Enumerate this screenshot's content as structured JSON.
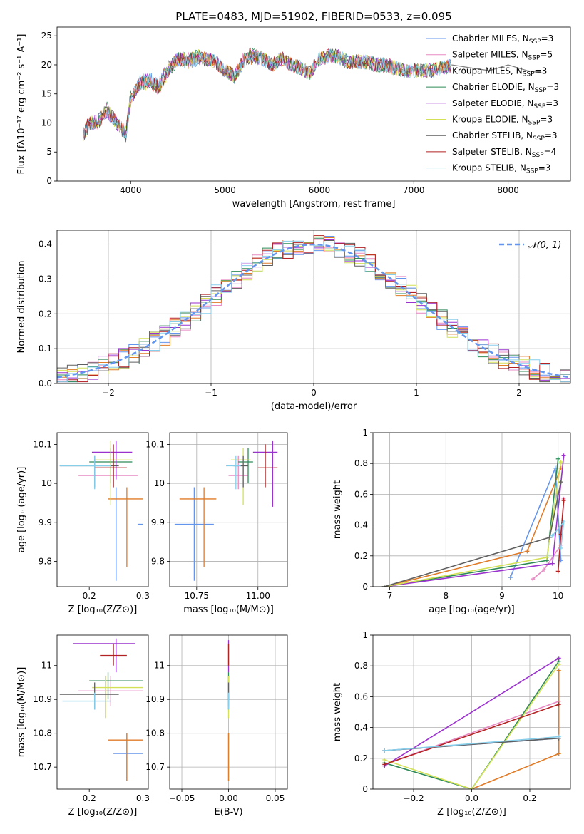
{
  "figure": {
    "title": "PLATE=0483, MJD=51902, FIBERID=0533, z=0.095"
  },
  "colors": [
    "#6495ed",
    "#e78ac3",
    "#e07b28",
    "#2e8b57",
    "#9a32cd",
    "#d4e157",
    "#5f5f5f",
    "#b22222",
    "#87ceeb"
  ],
  "legend": [
    {
      "label": "Chabrier MILES, N",
      "sub": "SSP",
      "tail": "=3",
      "color": "#6495ed"
    },
    {
      "label": "Salpeter MILES, N",
      "sub": "SSP",
      "tail": "=5",
      "color": "#e78ac3"
    },
    {
      "label": "Kroupa MILES, N",
      "sub": "SSP",
      "tail": "=3",
      "color": "#e07b28"
    },
    {
      "label": "Chabrier ELODIE, N",
      "sub": "SSP",
      "tail": "=3",
      "color": "#2e8b57"
    },
    {
      "label": "Salpeter ELODIE, N",
      "sub": "SSP",
      "tail": "=3",
      "color": "#9a32cd"
    },
    {
      "label": "Kroupa ELODIE, N",
      "sub": "SSP",
      "tail": "=3",
      "color": "#d4e157"
    },
    {
      "label": "Chabrier STELIB, N",
      "sub": "SSP",
      "tail": "=3",
      "color": "#5f5f5f"
    },
    {
      "label": "Salpeter STELIB, N",
      "sub": "SSP",
      "tail": "=4",
      "color": "#b22222"
    },
    {
      "label": "Kroupa STELIB, N",
      "sub": "SSP",
      "tail": "=3",
      "color": "#87ceeb"
    }
  ],
  "chart_data": [
    {
      "id": "spectrum",
      "type": "line",
      "xlabel": "wavelength [Angstrom, rest frame]",
      "ylabel": "Flux [fλ10⁻¹⁷ erg cm⁻² s⁻¹ A⁻¹]",
      "xlim": [
        3220,
        8660
      ],
      "ylim": [
        0,
        26.5
      ],
      "xticks": [
        4000,
        5000,
        6000,
        7000,
        8000
      ],
      "yticks": [
        0,
        5,
        10,
        15,
        20,
        25
      ],
      "x": [
        3500,
        3550,
        3650,
        3750,
        3850,
        3950,
        4000,
        4100,
        4200,
        4300,
        4400,
        4500,
        4600,
        4700,
        4800,
        4900,
        5000,
        5100,
        5200,
        5300,
        5400,
        5500,
        5600,
        5700,
        5800,
        5900,
        6000,
        6100,
        6200,
        6300,
        6400,
        6500,
        6600,
        6700,
        6800,
        6900,
        7000,
        7100,
        7200,
        7300,
        7400
      ],
      "series": [
        {
          "name": "Chabrier MILES",
          "values": [
            8,
            9.5,
            10.5,
            12,
            10,
            8,
            14,
            17,
            17.5,
            16.5,
            19.5,
            21,
            20.5,
            21,
            21,
            20.5,
            19,
            18,
            20.5,
            21.5,
            21,
            20,
            21,
            20,
            19.5,
            18.5,
            21,
            21.5,
            21.5,
            20.5,
            20.5,
            20.5,
            20,
            20,
            19.5,
            19,
            19,
            19,
            19,
            19.5,
            20
          ]
        },
        {
          "name": "Chabrier STELIB",
          "values": [
            8,
            10,
            10,
            12.5,
            10,
            8.5,
            14.5,
            17,
            17,
            16,
            19,
            21,
            21,
            21.5,
            21,
            20.5,
            19,
            18,
            21,
            22,
            21,
            20,
            21,
            20,
            19.5,
            18.5,
            21,
            21.5,
            21.5,
            20.5,
            20.5,
            20.5,
            20,
            20,
            19.5,
            19,
            19,
            19,
            19,
            19.5,
            20
          ]
        }
      ],
      "tail_x": [
        7400,
        7600,
        7800,
        8000,
        8200,
        8400
      ],
      "tail_y": [
        20,
        19.5,
        19,
        20,
        19,
        18.5
      ]
    },
    {
      "id": "residuals",
      "type": "histogram",
      "xlabel": "(data-model)/error",
      "ylabel": "Normed distribution",
      "xlim": [
        -2.5,
        2.5
      ],
      "ylim": [
        0,
        0.44
      ],
      "xticks": [
        -2,
        -1,
        0,
        1,
        2
      ],
      "xticklabels": [
        "−2",
        "−1",
        "0",
        "1",
        "2"
      ],
      "yticks": [
        0.0,
        0.1,
        0.2,
        0.3,
        0.4
      ],
      "yticklabels": [
        "0.0",
        "0.1",
        "0.2",
        "0.3",
        "0.4"
      ],
      "bin_width": 0.1,
      "legend_label": "𝒩(0, 1)"
    },
    {
      "id": "age_vs_z",
      "type": "errorbar",
      "xlabel": "Z [log₁₀(Z/Z⊙)]",
      "ylabel": "age  [log₁₀(age/yr)]",
      "xlim": [
        0.14,
        0.31
      ],
      "ylim": [
        9.735,
        10.13
      ],
      "xticks": [
        0.2,
        0.3
      ],
      "yticks": [
        9.8,
        9.9,
        10.0,
        10.1
      ],
      "points": [
        {
          "x": 0.25,
          "y": 9.895,
          "xerr": [
            0.29,
            0.3
          ],
          "yerr": [
            9.75,
            9.99
          ],
          "color": "#6495ed"
        },
        {
          "x": 0.245,
          "y": 10.02,
          "xerr": [
            0.18,
            0.29
          ],
          "yerr": [
            9.99,
            10.08
          ],
          "color": "#e78ac3"
        },
        {
          "x": 0.27,
          "y": 9.96,
          "xerr": [
            0.235,
            0.3
          ],
          "yerr": [
            9.785,
            9.99
          ],
          "color": "#e07b28"
        },
        {
          "x": 0.24,
          "y": 10.055,
          "xerr": [
            0.2,
            0.28
          ],
          "yerr": [
            10.0,
            10.09
          ],
          "color": "#2e8b57"
        },
        {
          "x": 0.25,
          "y": 10.08,
          "xerr": [
            0.205,
            0.28
          ],
          "yerr": [
            10.01,
            10.11
          ],
          "color": "#9a32cd"
        },
        {
          "x": 0.24,
          "y": 10.06,
          "xerr": [
            0.21,
            0.28
          ],
          "yerr": [
            9.945,
            10.11
          ],
          "color": "#d4e157"
        },
        {
          "x": 0.21,
          "y": 10.045,
          "xerr": [
            0.145,
            0.255
          ],
          "yerr": [
            9.99,
            10.07
          ],
          "color": "#5f5f5f"
        },
        {
          "x": 0.245,
          "y": 10.04,
          "xerr": [
            0.21,
            0.27
          ],
          "yerr": [
            9.99,
            10.1
          ],
          "color": "#b22222"
        },
        {
          "x": 0.21,
          "y": 10.045,
          "xerr": [
            0.145,
            0.24
          ],
          "yerr": [
            9.985,
            10.07
          ],
          "color": "#87ceeb"
        }
      ]
    },
    {
      "id": "age_vs_mass",
      "type": "errorbar",
      "xlabel": "mass [log₁₀(M/M⊙)]",
      "ylabel": "",
      "xlim": [
        10.64,
        11.12
      ],
      "ylim": [
        9.735,
        10.13
      ],
      "xticks": [
        10.75,
        11.0
      ],
      "xticklabels": [
        "10.75",
        "11.00"
      ],
      "yticks": [
        9.8,
        9.9,
        10.0,
        10.1
      ],
      "points": [
        {
          "x": 10.74,
          "y": 9.895,
          "xerr": [
            10.66,
            10.82
          ],
          "yerr": [
            9.75,
            9.99
          ],
          "color": "#6495ed"
        },
        {
          "x": 10.92,
          "y": 10.02,
          "xerr": [
            10.88,
            10.96
          ],
          "yerr": [
            9.985,
            10.07
          ],
          "color": "#e78ac3"
        },
        {
          "x": 10.78,
          "y": 9.96,
          "xerr": [
            10.68,
            10.83
          ],
          "yerr": [
            9.785,
            9.99
          ],
          "color": "#e07b28"
        },
        {
          "x": 10.96,
          "y": 10.055,
          "xerr": [
            10.92,
            10.98
          ],
          "yerr": [
            10.0,
            10.09
          ],
          "color": "#2e8b57"
        },
        {
          "x": 11.06,
          "y": 10.08,
          "xerr": [
            10.98,
            11.08
          ],
          "yerr": [
            9.94,
            10.11
          ],
          "color": "#9a32cd"
        },
        {
          "x": 10.94,
          "y": 10.06,
          "xerr": [
            10.89,
            10.97
          ],
          "yerr": [
            9.945,
            10.09
          ],
          "color": "#d4e157"
        },
        {
          "x": 10.94,
          "y": 10.045,
          "xerr": [
            10.9,
            10.96
          ],
          "yerr": [
            9.99,
            10.07
          ],
          "color": "#5f5f5f"
        },
        {
          "x": 11.03,
          "y": 10.04,
          "xerr": [
            11.0,
            11.08
          ],
          "yerr": [
            9.99,
            10.1
          ],
          "color": "#b22222"
        },
        {
          "x": 10.91,
          "y": 10.045,
          "xerr": [
            10.87,
            10.93
          ],
          "yerr": [
            9.985,
            10.07
          ],
          "color": "#87ceeb"
        }
      ]
    },
    {
      "id": "weight_vs_age",
      "type": "line",
      "xlabel": "age  [log₁₀(age/yr)]",
      "ylabel": "mass weight",
      "xlim": [
        6.7,
        10.22
      ],
      "ylim": [
        0,
        1.0
      ],
      "xticks": [
        7,
        8,
        9,
        10
      ],
      "yticks": [
        0.0,
        0.2,
        0.4,
        0.6,
        0.8,
        1.0
      ],
      "series": [
        {
          "name": "Chabrier MILES",
          "x": [
            9.15,
            9.95,
            10.05
          ],
          "y": [
            0.06,
            0.77,
            0.17
          ],
          "color": "#6495ed"
        },
        {
          "name": "Salpeter MILES",
          "x": [
            9.55,
            9.75,
            10.05,
            10.1
          ],
          "y": [
            0.05,
            0.11,
            0.27,
            0.57
          ],
          "color": "#e78ac3"
        },
        {
          "name": "Kroupa MILES",
          "x": [
            6.9,
            9.45,
            10.05
          ],
          "y": [
            0.0,
            0.23,
            0.77
          ],
          "color": "#e07b28"
        },
        {
          "name": "Chabrier ELODIE",
          "x": [
            6.9,
            9.8,
            10.0
          ],
          "y": [
            0.0,
            0.17,
            0.83
          ],
          "color": "#2e8b57"
        },
        {
          "name": "Salpeter ELODIE",
          "x": [
            6.9,
            9.9,
            10.1
          ],
          "y": [
            0.0,
            0.15,
            0.85
          ],
          "color": "#9a32cd"
        },
        {
          "name": "Kroupa ELODIE",
          "x": [
            6.9,
            9.8,
            10.05
          ],
          "y": [
            0.0,
            0.19,
            0.81
          ],
          "color": "#d4e157"
        },
        {
          "name": "Chabrier STELIB",
          "x": [
            6.9,
            9.85,
            10.05
          ],
          "y": [
            0.0,
            0.32,
            0.68
          ],
          "color": "#5f5f5f"
        },
        {
          "name": "Salpeter STELIB",
          "x": [
            10.0,
            10.05,
            10.1
          ],
          "y": [
            0.1,
            0.34,
            0.56
          ],
          "color": "#b22222"
        },
        {
          "name": "Kroupa STELIB",
          "x": [
            9.9,
            10.1,
            10.05
          ],
          "y": [
            0.33,
            0.42,
            0.25
          ],
          "color": "#87ceeb"
        }
      ]
    },
    {
      "id": "mass_vs_z",
      "type": "errorbar",
      "xlabel": "Z [log₁₀(Z/Z⊙)]",
      "ylabel": "mass [log₁₀(M/M⊙)]",
      "xlim": [
        0.14,
        0.31
      ],
      "ylim": [
        10.635,
        11.09
      ],
      "xticks": [
        0.2,
        0.3
      ],
      "yticks": [
        10.7,
        10.8,
        10.9,
        11.0
      ],
      "points": [
        {
          "x": 0.27,
          "y": 10.74,
          "xerr": [
            0.245,
            0.3
          ],
          "yerr": [
            10.66,
            10.8
          ],
          "color": "#6495ed"
        },
        {
          "x": 0.24,
          "y": 10.925,
          "xerr": [
            0.18,
            0.3
          ],
          "yerr": [
            10.88,
            10.97
          ],
          "color": "#e78ac3"
        },
        {
          "x": 0.27,
          "y": 10.78,
          "xerr": [
            0.235,
            0.3
          ],
          "yerr": [
            10.66,
            10.8
          ],
          "color": "#e07b28"
        },
        {
          "x": 0.235,
          "y": 10.955,
          "xerr": [
            0.2,
            0.3
          ],
          "yerr": [
            10.9,
            10.98
          ],
          "color": "#2e8b57"
        },
        {
          "x": 0.25,
          "y": 11.065,
          "xerr": [
            0.17,
            0.285
          ],
          "yerr": [
            10.98,
            11.08
          ],
          "color": "#9a32cd"
        },
        {
          "x": 0.23,
          "y": 10.935,
          "xerr": [
            0.205,
            0.3
          ],
          "yerr": [
            10.845,
            10.97
          ],
          "color": "#d4e157"
        },
        {
          "x": 0.21,
          "y": 10.915,
          "xerr": [
            0.145,
            0.255
          ],
          "yerr": [
            10.87,
            10.95
          ],
          "color": "#5f5f5f"
        },
        {
          "x": 0.245,
          "y": 11.03,
          "xerr": [
            0.22,
            0.27
          ],
          "yerr": [
            11.0,
            11.065
          ],
          "color": "#b22222"
        },
        {
          "x": 0.21,
          "y": 10.895,
          "xerr": [
            0.15,
            0.24
          ],
          "yerr": [
            10.87,
            10.92
          ],
          "color": "#87ceeb"
        }
      ]
    },
    {
      "id": "mass_vs_ebv",
      "type": "errorbar",
      "xlabel": "E(B-V)",
      "ylabel": "",
      "xlim": [
        -0.063,
        0.063
      ],
      "ylim": [
        10.635,
        11.09
      ],
      "xticks": [
        -0.05,
        0.0,
        0.05
      ],
      "xticklabels": [
        "−0.05",
        "0.00",
        "0.05"
      ],
      "yticks": [
        10.7,
        10.8,
        10.9,
        11.0
      ],
      "points": [
        {
          "x": 0,
          "y": 10.74,
          "yerr": [
            10.66,
            10.8
          ],
          "color": "#6495ed"
        },
        {
          "x": 0,
          "y": 10.925,
          "yerr": [
            10.88,
            10.97
          ],
          "color": "#e78ac3"
        },
        {
          "x": 0,
          "y": 10.78,
          "yerr": [
            10.66,
            10.8
          ],
          "color": "#e07b28"
        },
        {
          "x": 0,
          "y": 10.955,
          "yerr": [
            10.9,
            10.98
          ],
          "color": "#2e8b57"
        },
        {
          "x": 0,
          "y": 11.065,
          "yerr": [
            10.98,
            11.075
          ],
          "color": "#9a32cd"
        },
        {
          "x": 0,
          "y": 10.935,
          "yerr": [
            10.845,
            10.97
          ],
          "color": "#d4e157"
        },
        {
          "x": 0,
          "y": 10.915,
          "yerr": [
            10.87,
            10.95
          ],
          "color": "#5f5f5f"
        },
        {
          "x": 0,
          "y": 11.03,
          "yerr": [
            11.0,
            11.065
          ],
          "color": "#b22222"
        },
        {
          "x": 0,
          "y": 10.895,
          "yerr": [
            10.87,
            10.92
          ],
          "color": "#87ceeb"
        }
      ]
    },
    {
      "id": "weight_vs_z",
      "type": "line",
      "xlabel": "Z [log₁₀(Z/Z⊙)]",
      "ylabel": "mass weight",
      "xlim": [
        -0.34,
        0.34
      ],
      "ylim": [
        0,
        1.0
      ],
      "xticks": [
        -0.2,
        0.0,
        0.2
      ],
      "xticklabels": [
        "−0.2",
        "0.0",
        "0.2"
      ],
      "yticks": [
        0.0,
        0.2,
        0.4,
        0.6,
        0.8,
        1.0
      ],
      "series": [
        {
          "name": "Chabrier MILES",
          "x": [
            -0.3,
            0.3
          ],
          "y": [
            0.25,
            0.33
          ],
          "color": "#6495ed"
        },
        {
          "name": "Salpeter MILES",
          "x": [
            -0.3,
            0.3
          ],
          "y": [
            0.16,
            0.57
          ],
          "color": "#e78ac3"
        },
        {
          "name": "Kroupa MILES",
          "x": [
            0.0,
            0.3,
            0.3
          ],
          "y": [
            0.0,
            0.23,
            0.77
          ],
          "color": "#e07b28"
        },
        {
          "name": "Chabrier ELODIE",
          "x": [
            -0.3,
            0.0,
            0.3
          ],
          "y": [
            0.17,
            0.0,
            0.83
          ],
          "color": "#2e8b57"
        },
        {
          "name": "Salpeter ELODIE",
          "x": [
            -0.3,
            0.3
          ],
          "y": [
            0.15,
            0.85
          ],
          "color": "#9a32cd"
        },
        {
          "name": "Kroupa ELODIE",
          "x": [
            -0.3,
            0.0,
            0.3
          ],
          "y": [
            0.19,
            0.0,
            0.81
          ],
          "color": "#d4e157"
        },
        {
          "name": "Chabrier STELIB",
          "x": [
            -0.3,
            0.3
          ],
          "y": [
            0.25,
            0.33
          ],
          "color": "#5f5f5f"
        },
        {
          "name": "Salpeter STELIB",
          "x": [
            -0.3,
            0.3
          ],
          "y": [
            0.16,
            0.55
          ],
          "color": "#b22222"
        },
        {
          "name": "Kroupa STELIB",
          "x": [
            -0.3,
            0.3
          ],
          "y": [
            0.25,
            0.34
          ],
          "color": "#87ceeb"
        }
      ]
    }
  ]
}
